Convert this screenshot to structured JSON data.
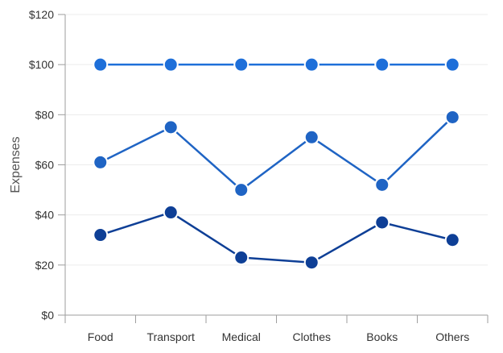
{
  "chart_data": {
    "type": "line",
    "title": "",
    "xlabel": "",
    "ylabel": "Expenses",
    "categories": [
      "Food",
      "Transport",
      "Medical",
      "Clothes",
      "Books",
      "Others"
    ],
    "ylim": [
      0,
      120
    ],
    "yticks": [
      0,
      20,
      40,
      60,
      80,
      100,
      120
    ],
    "ytick_labels": [
      "$0",
      "$20",
      "$40",
      "$60",
      "$80",
      "$100",
      "$120"
    ],
    "grid": true,
    "legend": "none",
    "series": [
      {
        "values": [
          100,
          100,
          100,
          100,
          100,
          100
        ],
        "color": "#1E6FD9"
      },
      {
        "values": [
          61,
          75,
          50,
          71,
          52,
          79
        ],
        "color": "#1F64C4"
      },
      {
        "values": [
          32,
          41,
          23,
          21,
          37,
          30
        ],
        "color": "#0E3F96"
      }
    ]
  }
}
